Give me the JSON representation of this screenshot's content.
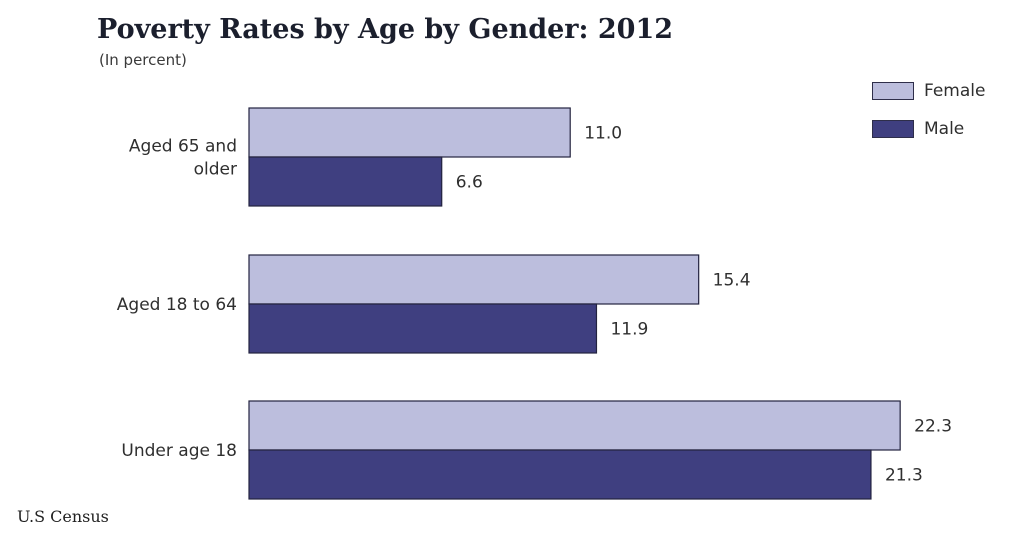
{
  "chart_data": {
    "type": "bar",
    "orientation": "horizontal",
    "title": "Poverty Rates by Age by Gender: 2012",
    "subtitle": "(In percent)",
    "categories": [
      "Aged 65 and older",
      "Aged 18 to 64",
      "Under age 18"
    ],
    "category_label_lines": [
      [
        "Aged 65 and",
        "older"
      ],
      [
        "Aged 18 to 64"
      ],
      [
        "Under age 18"
      ]
    ],
    "series": [
      {
        "name": "Female",
        "values": [
          11.0,
          15.4,
          22.3
        ],
        "value_labels": [
          "11.0",
          "15.4",
          "22.3"
        ],
        "color": "#bcbedd"
      },
      {
        "name": "Male",
        "values": [
          6.6,
          11.9,
          21.3
        ],
        "value_labels": [
          "6.6",
          "11.9",
          "21.3"
        ],
        "color": "#3f3f80"
      }
    ],
    "xlim": [
      0,
      24
    ],
    "grid": false,
    "legend_position": "top-right",
    "source": "U.S Census"
  }
}
